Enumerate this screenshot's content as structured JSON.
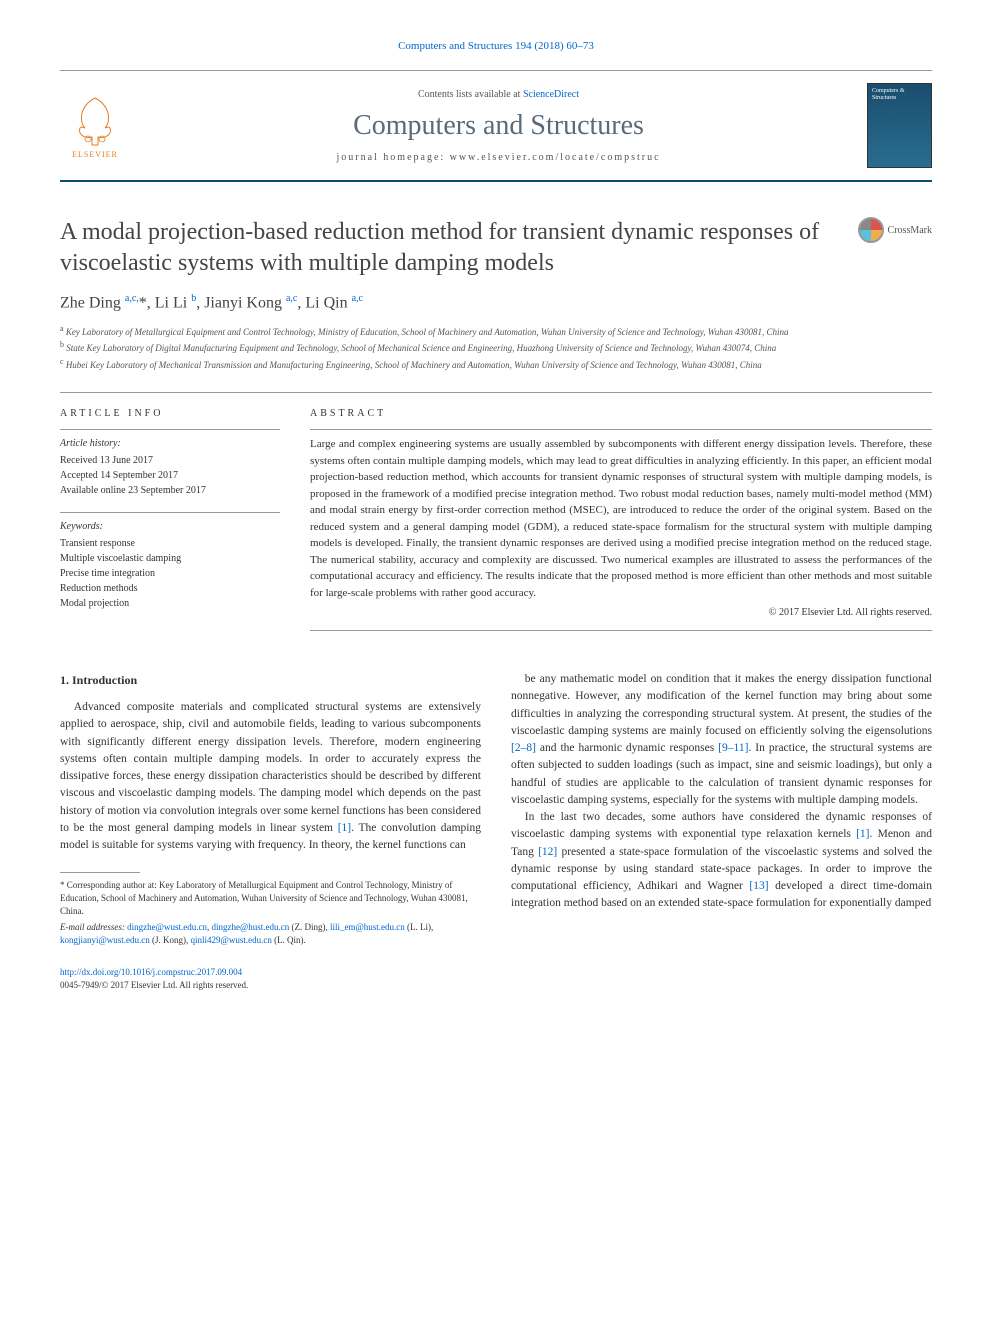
{
  "journal_ref": "Computers and Structures 194 (2018) 60–73",
  "masthead": {
    "contents_prefix": "Contents lists available at ",
    "contents_link": "ScienceDirect",
    "journal_title": "Computers and Structures",
    "homepage_prefix": "journal homepage: ",
    "homepage_url": "www.elsevier.com/locate/compstruc",
    "publisher_label": "ELSEVIER",
    "cover_title": "Computers & Structures"
  },
  "title": "A modal projection-based reduction method for transient dynamic responses of viscoelastic systems with multiple damping models",
  "crossmark_label": "CrossMark",
  "authors_html": "Zhe Ding <sup>a,c,</sup>*, Li Li <sup>b</sup>, Jianyi Kong <sup>a,c</sup>, Li Qin <sup>a,c</sup>",
  "affiliations": {
    "a": "Key Laboratory of Metallurgical Equipment and Control Technology, Ministry of Education, School of Machinery and Automation, Wuhan University of Science and Technology, Wuhan 430081, China",
    "b": "State Key Laboratory of Digital Manufacturing Equipment and Technology, School of Mechanical Science and Engineering, Huazhong University of Science and Technology, Wuhan 430074, China",
    "c": "Hubei Key Laboratory of Mechanical Transmission and Manufacturing Engineering, School of Machinery and Automation, Wuhan University of Science and Technology, Wuhan 430081, China"
  },
  "article_info": {
    "heading": "ARTICLE INFO",
    "history_label": "Article history:",
    "received": "Received 13 June 2017",
    "accepted": "Accepted 14 September 2017",
    "online": "Available online 23 September 2017",
    "keywords_label": "Keywords:",
    "keywords": [
      "Transient response",
      "Multiple viscoelastic damping",
      "Precise time integration",
      "Reduction methods",
      "Modal projection"
    ]
  },
  "abstract": {
    "heading": "ABSTRACT",
    "text": "Large and complex engineering systems are usually assembled by subcomponents with different energy dissipation levels. Therefore, these systems often contain multiple damping models, which may lead to great difficulties in analyzing efficiently. In this paper, an efficient modal projection-based reduction method, which accounts for transient dynamic responses of structural system with multiple damping models, is proposed in the framework of a modified precise integration method. Two robust modal reduction bases, namely multi-model method (MM) and modal strain energy by first-order correction method (MSEC), are introduced to reduce the order of the original system. Based on the reduced system and a general damping model (GDM), a reduced state-space formalism for the structural system with multiple damping models is developed. Finally, the transient dynamic responses are derived using a modified precise integration method on the reduced stage. The numerical stability, accuracy and complexity are discussed. Two numerical examples are illustrated to assess the performances of the computational accuracy and efficiency. The results indicate that the proposed method is more efficient than other methods and most suitable for large-scale problems with rather good accuracy.",
    "copyright": "© 2017 Elsevier Ltd. All rights reserved."
  },
  "body": {
    "section_1_heading": "1. Introduction",
    "left_p1": "Advanced composite materials and complicated structural systems are extensively applied to aerospace, ship, civil and automobile fields, leading to various subcomponents with significantly different energy dissipation levels. Therefore, modern engineering systems often contain multiple damping models. In order to accurately express the dissipative forces, these energy dissipation characteristics should be described by different viscous and viscoelastic damping models. The damping model which depends on the past history of motion via convolution integrals over some kernel functions has been considered to be the most general damping models in linear system [1]. The convolution damping model is suitable for systems varying with frequency. In theory, the kernel functions can",
    "right_p1": "be any mathematic model on condition that it makes the energy dissipation functional nonnegative. However, any modification of the kernel function may bring about some difficulties in analyzing the corresponding structural system. At present, the studies of the viscoelastic damping systems are mainly focused on efficiently solving the eigensolutions [2–8] and the harmonic dynamic responses [9–11]. In practice, the structural systems are often subjected to sudden loadings (such as impact, sine and seismic loadings), but only a handful of studies are applicable to the calculation of transient dynamic responses for viscoelastic damping systems, especially for the systems with multiple damping models.",
    "right_p2": "In the last two decades, some authors have considered the dynamic responses of viscoelastic damping systems with exponential type relaxation kernels [1]. Menon and Tang [12] presented a state-space formulation of the viscoelastic systems and solved the dynamic response by using standard state-space packages. In order to improve the computational efficiency, Adhikari and Wagner [13] developed a direct time-domain integration method based on an extended state-space formulation for exponentially damped"
  },
  "footnotes": {
    "corr": "* Corresponding author at: Key Laboratory of Metallurgical Equipment and Control Technology, Ministry of Education, School of Machinery and Automation, Wuhan University of Science and Technology, Wuhan 430081, China.",
    "email_label": "E-mail addresses:",
    "emails": "dingzhe@wust.edu.cn, dingzhe@hust.edu.cn (Z. Ding), lili_em@hust.edu.cn (L. Li), kongjianyi@wust.edu.cn (J. Kong), qinli429@wust.edu.cn (L. Qin)."
  },
  "footer": {
    "doi": "http://dx.doi.org/10.1016/j.compstruc.2017.09.004",
    "issn_line": "0045-7949/© 2017 Elsevier Ltd. All rights reserved."
  },
  "refs": {
    "r1": "[1]",
    "r2_8": "[2–8]",
    "r9_11": "[9–11]",
    "r12": "[12]",
    "r13": "[13]"
  },
  "colors": {
    "link": "#0066cc",
    "rule": "#0b4d6e",
    "journal_title": "#5a6a7a",
    "publisher": "#e67e22"
  }
}
